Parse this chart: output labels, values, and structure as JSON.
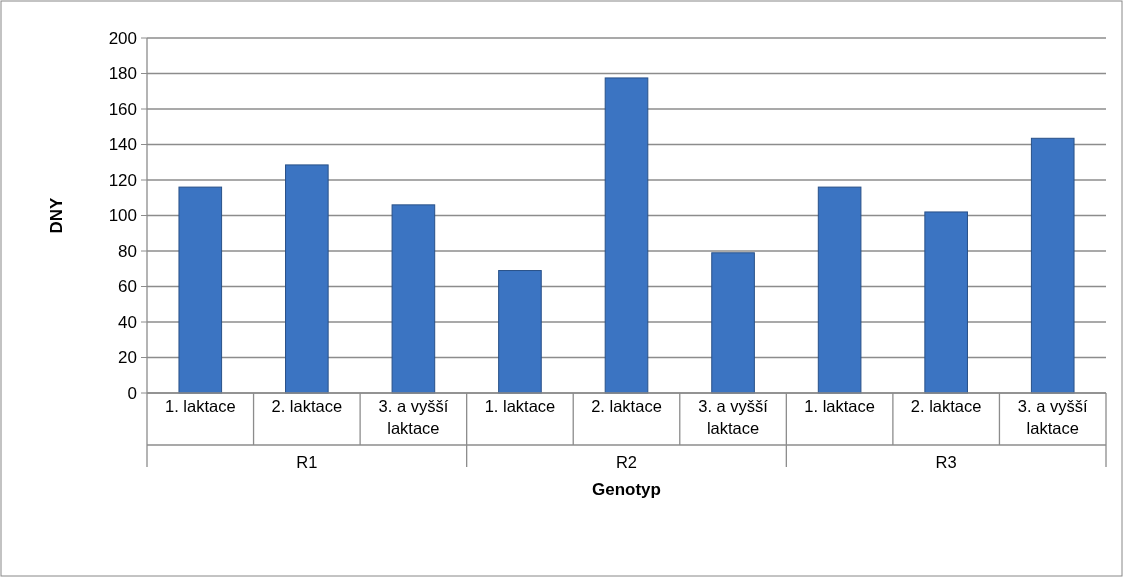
{
  "chart_data": {
    "type": "bar",
    "xlabel": "Genotyp",
    "ylabel": "DNY",
    "categories": [
      "1. laktace",
      "2. laktace",
      "3. a vyšší laktace",
      "1. laktace",
      "2. laktace",
      "3. a vyšší laktace",
      "1. laktace",
      "2. laktace",
      "3. a vyšší laktace"
    ],
    "series": [
      {
        "color": "#3b74c2",
        "values": [
          116,
          128.5,
          106,
          69,
          177.5,
          79,
          116,
          102,
          143.5
        ]
      }
    ],
    "annotations": [
      "R1",
      "R2",
      "R3"
    ],
    "ylim": [
      0,
      200
    ],
    "yticks": [
      0,
      20,
      40,
      60,
      80,
      100,
      120,
      140,
      160,
      180,
      200
    ],
    "grid": "y"
  }
}
